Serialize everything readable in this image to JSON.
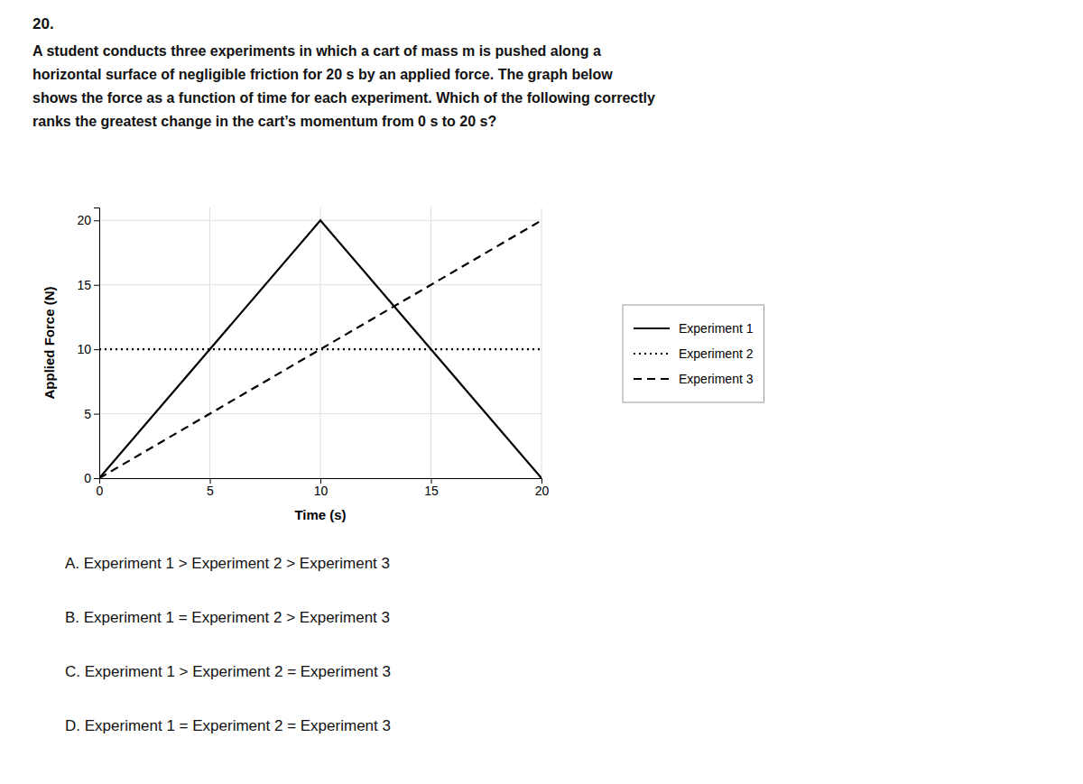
{
  "chart_data": {
    "type": "line",
    "title": "20.",
    "subtitle": "A student conducts three experiments in which a cart of mass m is pushed along a\nhorizontal surface of negligible friction for 20 s by an applied force. The graph below\nshows the force as a function of time for each experiment. Which of the following correctly\nranks the greatest change in the cart’s momentum from 0 s to 20 s?",
    "x_label": "Time (s)",
    "y_label": "Applied Force (N)",
    "xlim": [
      0,
      20
    ],
    "ylim": [
      0,
      21
    ],
    "xticks": [
      0,
      5,
      10,
      15,
      20
    ],
    "yticks": [
      0,
      5,
      10,
      15,
      20
    ],
    "grid": true,
    "legend": "right",
    "series": [
      {
        "name": "Experiment 1",
        "color": "black",
        "line_style": "solid",
        "x": [
          0,
          10,
          20
        ],
        "values": [
          0,
          20,
          0
        ]
      },
      {
        "name": "Experiment 2",
        "color": "black",
        "line_style": "dotted",
        "x": [
          0,
          20
        ],
        "values": [
          10,
          10
        ]
      },
      {
        "name": "Experiment 3",
        "color": "black",
        "line_style": "dashed",
        "x": [
          0,
          20
        ],
        "values": [
          0,
          20
        ]
      }
    ],
    "annotations": [
      "A.  Experiment 1 > Experiment 2 > Experiment 3",
      "B.  Experiment 1 = Experiment 2 > Experiment 3",
      "C.  Experiment 1 > Experiment 2 = Experiment 3",
      "D.  Experiment 1 = Experiment 2 = Experiment 3"
    ]
  }
}
